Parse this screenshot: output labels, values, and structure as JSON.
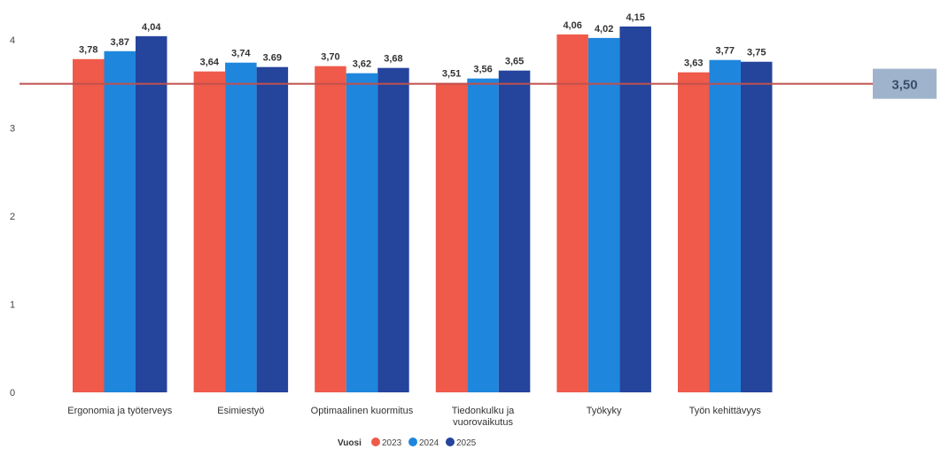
{
  "chart_data": {
    "type": "bar",
    "categories": [
      [
        "Ergonomia ja työterveys"
      ],
      [
        "Esimiestyö"
      ],
      [
        "Optimaalinen kuormitus"
      ],
      [
        "Tiedonkulku ja",
        "vuorovaikutus"
      ],
      [
        "Työkyky"
      ],
      [
        "Työn kehittävyys"
      ]
    ],
    "series": [
      {
        "name": "2023",
        "color": "#ef5a4a",
        "values": [
          3.78,
          3.64,
          3.7,
          3.51,
          4.06,
          3.63
        ]
      },
      {
        "name": "2024",
        "color": "#1f86dd",
        "values": [
          3.87,
          3.74,
          3.62,
          3.56,
          4.02,
          3.77
        ]
      },
      {
        "name": "2025",
        "color": "#25449c",
        "values": [
          4.04,
          3.69,
          3.68,
          3.65,
          4.15,
          3.75
        ]
      }
    ],
    "data_labels": [
      [
        "3,78",
        "3,87",
        "4,04"
      ],
      [
        "3,64",
        "3,74",
        "3.69"
      ],
      [
        "3,70",
        "3,62",
        "3,68"
      ],
      [
        "3,51",
        "3,56",
        "3,65"
      ],
      [
        "4,06",
        "4,02",
        "4,15"
      ],
      [
        "3,63",
        "3,77",
        "3,75"
      ]
    ],
    "yticks": [
      0,
      1,
      2,
      3,
      4
    ],
    "ylim": [
      0,
      4.35
    ],
    "reference_line": {
      "value": 3.5,
      "label": "3,50",
      "color": "#c0504d",
      "badge_color": "#9fb4cc"
    },
    "legend": {
      "title": "Vuosi",
      "position": "bottom-center"
    },
    "grid": false
  }
}
